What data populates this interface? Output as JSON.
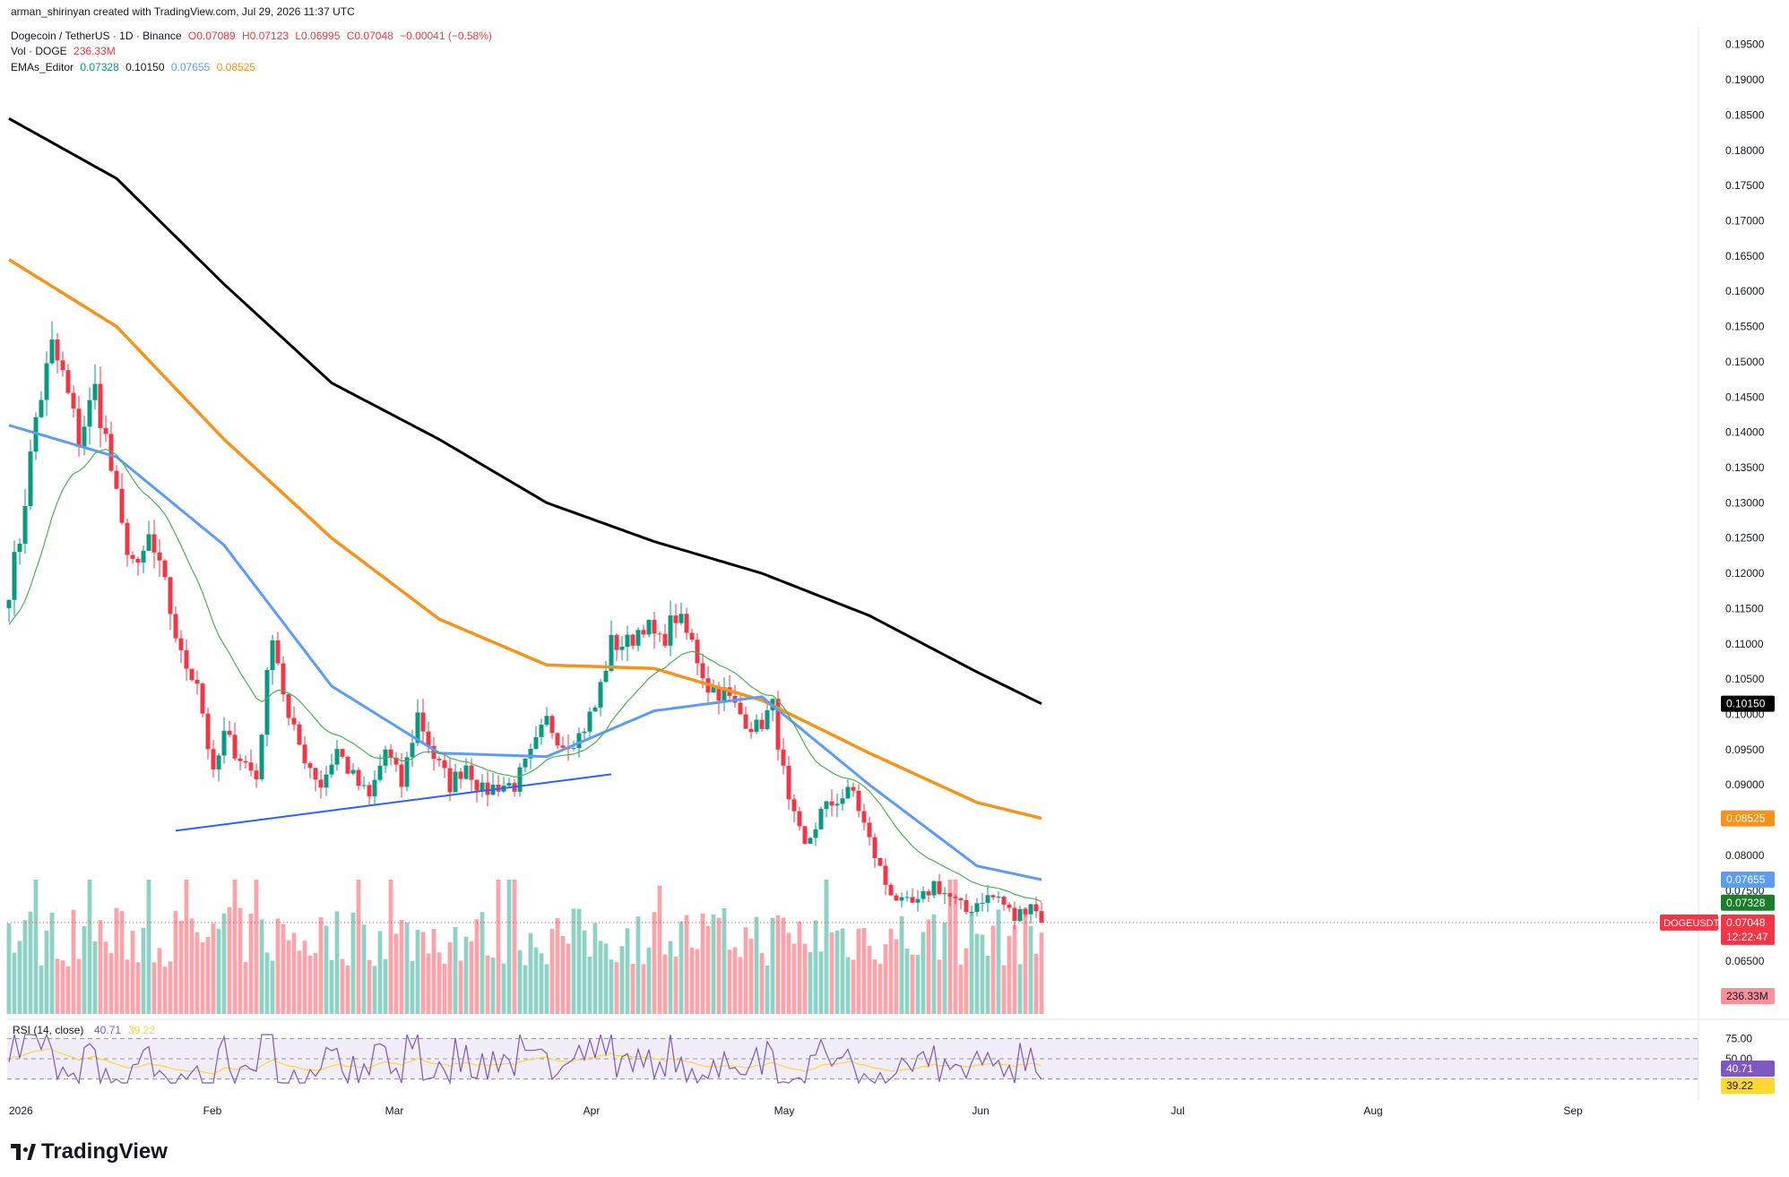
{
  "header": {
    "credit": "arman_shirinyan created with TradingView.com, Jul 29, 2026 11:37 UTC",
    "symbol": "Dogecoin / TetherUS · 1D · Binance",
    "ohlc": {
      "o": "O0.07089",
      "h": "H0.07123",
      "l": "L0.06995",
      "c": "C0.07048",
      "chg": "−0.00041 (−0.58%)"
    },
    "vol_label": "Vol · DOGE",
    "vol_value": "236.33M",
    "ema_label": "EMAs_Editor",
    "ema_values": [
      "0.07328",
      "0.10150",
      "0.07655",
      "0.08525"
    ]
  },
  "colors": {
    "up": "#089981",
    "down": "#f23645",
    "ema20": "#4caf50",
    "ema50": "#5b9cf6",
    "ema100": "#f7931a",
    "ema200": "#000000",
    "trendline": "#2962ff",
    "rsi": "#7e57c2",
    "rsi_ma": "#fdd835"
  },
  "chart_data": {
    "type": "candlestick",
    "symbol": "DOGEUSDT",
    "timeframe": "1D",
    "x_labels": [
      "2026",
      "Feb",
      "Mar",
      "Apr",
      "May",
      "Jun",
      "Jul",
      "Aug",
      "Sep"
    ],
    "price_ticks": [
      "0.06500",
      "0.07500",
      "0.08000",
      "0.09000",
      "0.09500",
      "0.10000",
      "0.10500",
      "0.11000",
      "0.11500",
      "0.12000",
      "0.12500",
      "0.13000",
      "0.13500",
      "0.14000",
      "0.14500",
      "0.15000",
      "0.15500",
      "0.16000",
      "0.16500",
      "0.17000",
      "0.17500",
      "0.18000",
      "0.18500",
      "0.19000",
      "0.19500"
    ],
    "ylim": [
      0.0575,
      0.1975
    ],
    "anchors": [
      [
        0,
        0.118
      ],
      [
        2,
        0.125
      ],
      [
        5,
        0.142
      ],
      [
        8,
        0.152
      ],
      [
        10,
        0.148
      ],
      [
        13,
        0.139
      ],
      [
        16,
        0.146
      ],
      [
        18,
        0.139
      ],
      [
        21,
        0.126
      ],
      [
        24,
        0.12
      ],
      [
        26,
        0.125
      ],
      [
        29,
        0.118
      ],
      [
        32,
        0.108
      ],
      [
        35,
        0.105
      ],
      [
        38,
        0.091
      ],
      [
        40,
        0.097
      ],
      [
        43,
        0.094
      ],
      [
        46,
        0.091
      ],
      [
        49,
        0.112
      ],
      [
        52,
        0.099
      ],
      [
        55,
        0.094
      ],
      [
        58,
        0.09
      ],
      [
        61,
        0.095
      ],
      [
        64,
        0.091
      ],
      [
        67,
        0.088
      ],
      [
        70,
        0.095
      ],
      [
        73,
        0.09
      ],
      [
        76,
        0.1
      ],
      [
        79,
        0.094
      ],
      [
        82,
        0.09
      ],
      [
        85,
        0.093
      ],
      [
        88,
        0.089
      ],
      [
        91,
        0.09
      ],
      [
        94,
        0.09
      ],
      [
        97,
        0.094
      ],
      [
        100,
        0.099
      ],
      [
        103,
        0.096
      ],
      [
        106,
        0.097
      ],
      [
        109,
        0.101
      ],
      [
        112,
        0.11
      ],
      [
        115,
        0.11
      ],
      [
        118,
        0.113
      ],
      [
        121,
        0.11
      ],
      [
        124,
        0.114
      ],
      [
        127,
        0.11
      ],
      [
        130,
        0.104
      ],
      [
        133,
        0.103
      ],
      [
        136,
        0.1
      ],
      [
        139,
        0.098
      ],
      [
        142,
        0.101
      ],
      [
        145,
        0.087
      ],
      [
        148,
        0.081
      ],
      [
        151,
        0.086
      ],
      [
        154,
        0.088
      ],
      [
        157,
        0.089
      ],
      [
        160,
        0.082
      ],
      [
        163,
        0.076
      ],
      [
        166,
        0.073
      ],
      [
        169,
        0.073
      ],
      [
        172,
        0.076
      ],
      [
        175,
        0.074
      ],
      [
        178,
        0.072
      ],
      [
        181,
        0.074
      ],
      [
        184,
        0.074
      ],
      [
        187,
        0.071
      ],
      [
        190,
        0.0735
      ],
      [
        192,
        0.0705
      ]
    ],
    "ema_200": [
      [
        0,
        0.1845
      ],
      [
        20,
        0.176
      ],
      [
        40,
        0.161
      ],
      [
        60,
        0.147
      ],
      [
        80,
        0.139
      ],
      [
        100,
        0.13
      ],
      [
        120,
        0.1245
      ],
      [
        140,
        0.12
      ],
      [
        160,
        0.114
      ],
      [
        180,
        0.106
      ],
      [
        192,
        0.1015
      ]
    ],
    "ema_100": [
      [
        0,
        0.1645
      ],
      [
        20,
        0.155
      ],
      [
        40,
        0.139
      ],
      [
        60,
        0.125
      ],
      [
        80,
        0.1135
      ],
      [
        100,
        0.107
      ],
      [
        120,
        0.1065
      ],
      [
        140,
        0.102
      ],
      [
        160,
        0.0945
      ],
      [
        180,
        0.0875
      ],
      [
        192,
        0.08525
      ]
    ],
    "ema_50": [
      [
        0,
        0.141
      ],
      [
        20,
        0.1365
      ],
      [
        40,
        0.124
      ],
      [
        60,
        0.104
      ],
      [
        80,
        0.0945
      ],
      [
        100,
        0.094
      ],
      [
        120,
        0.1005
      ],
      [
        140,
        0.1025
      ],
      [
        160,
        0.09
      ],
      [
        180,
        0.0785
      ],
      [
        192,
        0.07655
      ]
    ],
    "trendline": [
      [
        31,
        0.0835
      ],
      [
        112,
        0.0915
      ]
    ],
    "rsi": {
      "label": "RSI (14, close)",
      "value": "40.71",
      "ma_value": "39.22",
      "levels": [
        "75.00",
        "50.00"
      ],
      "ylim": [
        10,
        90
      ]
    },
    "last_price": {
      "label": "DOGEUSDT",
      "value": "0.07048",
      "countdown": "12:22:47"
    },
    "last_volume": "236.33M"
  }
}
